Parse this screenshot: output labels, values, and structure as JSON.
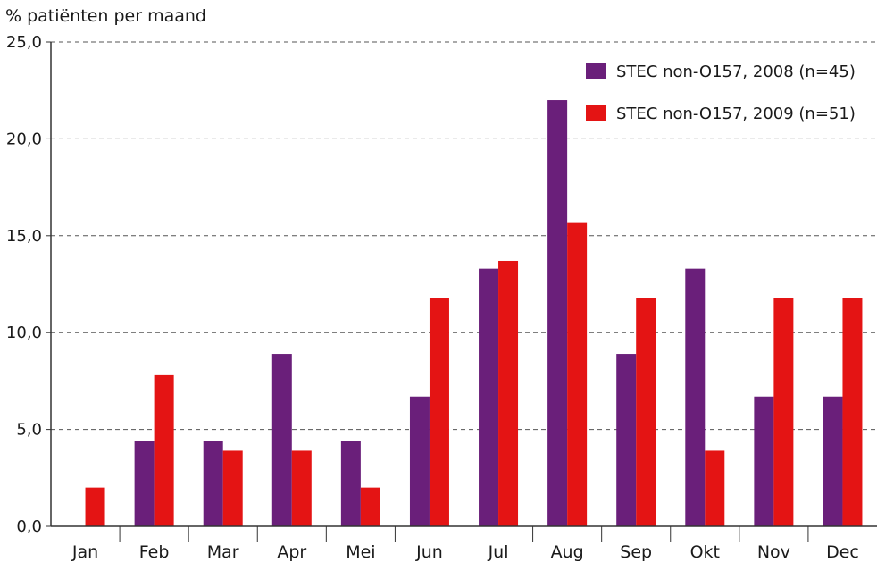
{
  "chart_data": {
    "type": "bar",
    "title": "",
    "ylabel": "% patiënten per maand",
    "xlabel": "",
    "ylim": [
      0,
      25
    ],
    "yticks": [
      0,
      5,
      10,
      15,
      20,
      25
    ],
    "ytick_labels": [
      "0,0",
      "5,0",
      "10,0",
      "15,0",
      "20,0",
      "25,0"
    ],
    "grid": "horizontal dashed",
    "legend_position": "top-right",
    "categories": [
      "Jan",
      "Feb",
      "Mar",
      "Apr",
      "Mei",
      "Jun",
      "Jul",
      "Aug",
      "Sep",
      "Okt",
      "Nov",
      "Dec"
    ],
    "series": [
      {
        "name": "STEC non-O157, 2008 (n=45)",
        "color": "#6a1f7a",
        "values": [
          0,
          4.4,
          4.4,
          8.9,
          4.4,
          6.7,
          13.3,
          22.0,
          8.9,
          13.3,
          6.7,
          6.7
        ]
      },
      {
        "name": "STEC non-O157, 2009 (n=51)",
        "color": "#e41414",
        "values": [
          2.0,
          7.8,
          3.9,
          3.9,
          2.0,
          11.8,
          13.7,
          15.7,
          11.8,
          3.9,
          11.8,
          11.8
        ]
      }
    ]
  }
}
